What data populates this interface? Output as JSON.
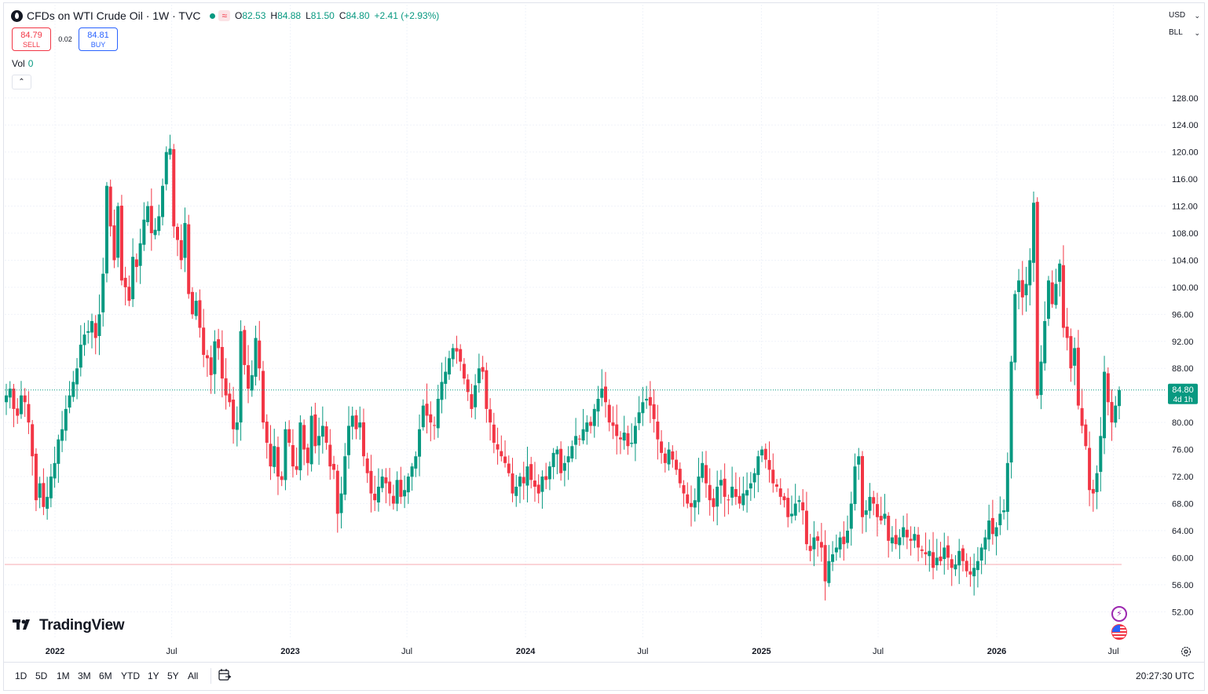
{
  "header": {
    "title": "CFDs on WTI Crude Oil · 1W · TVC",
    "approx_icon": "≈",
    "open_label": "O",
    "open": "82.53",
    "high_label": "H",
    "high": "84.88",
    "low_label": "L",
    "low": "81.50",
    "close_label": "C",
    "close": "84.80",
    "change": "+2.41 (+2.93%)"
  },
  "trade": {
    "sell_price": "84.79",
    "sell_label": "SELL",
    "spread": "0.02",
    "buy_price": "84.81",
    "buy_label": "BUY"
  },
  "volume": {
    "label": "Vol",
    "value": "0"
  },
  "collapse_icon": "⌃",
  "right_controls": {
    "currency": "USD",
    "unit": "BLL"
  },
  "price_label": {
    "price": "84.80",
    "countdown": "4d 1h"
  },
  "logo_text": "TradingView",
  "bottom_bar": {
    "ranges": [
      "1D",
      "5D",
      "1M",
      "3M",
      "6M",
      "YTD",
      "1Y",
      "5Y",
      "All"
    ],
    "clock": "20:27:30 UTC"
  },
  "icons": {
    "symbol": "symbol-logo-icon",
    "settings": "gear-icon",
    "calendar": "calendar-range-icon",
    "events": "lightning-icon",
    "flag": "us-flag-icon"
  },
  "colors": {
    "up": "#089981",
    "down": "#f23645",
    "grid": "#f0f3fa",
    "text": "#131722",
    "price_line": "#089981",
    "low_line": "#f7a9b0"
  },
  "chart_data": {
    "type": "candlestick",
    "title": "CFDs on WTI Crude Oil · 1W · TVC",
    "interval": "1W",
    "y_axis": {
      "position": "right",
      "ticks": [
        "52.00",
        "56.00",
        "60.00",
        "64.00",
        "68.00",
        "72.00",
        "76.00",
        "80.00",
        "84.00",
        "88.00",
        "92.00",
        "96.00",
        "100.00",
        "104.00",
        "108.00",
        "112.00",
        "116.00",
        "120.00",
        "124.00",
        "128.00"
      ],
      "ylim": [
        48.2,
        132.5
      ]
    },
    "x_axis": {
      "ticks": [
        {
          "label": "2022",
          "date": "2022-01-01",
          "bold": true
        },
        {
          "label": "Jul",
          "date": "2022-07-01",
          "bold": false
        },
        {
          "label": "2023",
          "date": "2023-01-01",
          "bold": true
        },
        {
          "label": "Jul",
          "date": "2023-07-01",
          "bold": false
        },
        {
          "label": "2024",
          "date": "2024-01-01",
          "bold": true
        },
        {
          "label": "Jul",
          "date": "2024-07-01",
          "bold": false
        },
        {
          "label": "2025",
          "date": "2025-01-01",
          "bold": true
        },
        {
          "label": "Jul",
          "date": "2025-07-01",
          "bold": false
        },
        {
          "label": "2026",
          "date": "2026-01-01",
          "bold": true
        },
        {
          "label": "Jul",
          "date": "2026-07-01",
          "bold": false
        }
      ],
      "xlim": [
        "2021-10-15",
        "2026-09-20"
      ]
    },
    "grid": true,
    "last_price": 84.8,
    "reference_level": 59.0,
    "series": [
      {
        "name": "",
        "weekly_closes": [
          [
            84.0,
            85.0,
            82.0,
            81.0,
            84.0,
            83.0,
            80.0,
            75.0,
            68.5,
            71.0,
            67.5,
            69.0,
            72.0,
            74.0,
            77.5,
            79.0,
            82.0,
            84.0,
            86.0,
            88.0,
            91.5,
            93.0,
            93.5,
            95.0,
            92.5,
            96.0,
            102.0,
            115.0,
            109.0,
            104.0,
            112.0,
            101.0,
            100.0,
            98.0,
            104.5,
            103.0,
            106.5,
            110.0,
            112.0,
            108.0,
            108.5,
            110.5,
            115.0,
            120.0,
            120.5,
            109.0,
            107.0,
            104.0,
            109.5,
            99.0,
            96.0,
            98.0,
            94.0,
            90.0,
            89.5,
            87.0,
            92.0,
            91.0,
            86.5,
            84.0,
            83.0,
            79.0,
            80.0,
            93.5,
            88.5,
            85.0,
            87.0,
            92.5,
            88.0,
            80.0,
            77.0,
            73.5,
            76.5,
            72.0,
            71.5,
            79.0,
            77.0,
            73.5,
            73.0,
            80.0,
            76.0,
            74.0,
            81.0,
            76.5,
            78.0,
            79.5,
            77.0,
            73.5,
            73.0,
            66.5,
            69.5,
            75.0,
            79.5,
            81.0,
            79.0,
            80.0,
            75.0,
            72.5,
            69.5,
            68.5,
            70.5,
            72.0,
            71.0,
            69.5,
            68.0,
            71.5,
            69.0,
            70.0,
            72.0,
            73.5,
            75.0,
            79.0,
            82.5,
            81.0,
            80.0,
            79.5,
            83.5,
            86.0,
            87.5,
            89.5,
            91.0,
            90.5,
            89.0,
            86.5,
            84.5,
            82.0,
            85.5,
            88.0,
            87.5,
            82.0,
            80.0,
            77.0,
            76.0,
            75.0,
            74.0,
            72.5,
            69.5,
            70.5,
            72.0,
            71.0,
            73.5,
            71.5,
            70.5,
            69.5,
            72.0,
            71.5,
            73.5,
            75.5,
            76.0,
            72.5,
            74.0,
            75.0,
            76.5,
            78.0,
            77.5,
            79.0,
            80.0,
            79.5,
            82.0,
            83.5,
            85.0,
            83.0,
            80.0,
            79.5,
            78.0,
            77.5,
            78.5,
            76.5,
            77.0,
            79.5,
            81.5,
            83.0,
            83.5,
            82.5,
            80.5,
            77.5,
            75.5,
            74.0,
            76.0,
            74.5,
            73.0,
            71.0,
            69.5,
            68.0,
            67.5,
            68.5,
            72.0,
            74.0,
            71.0,
            68.5,
            67.5,
            70.5,
            71.5,
            69.0,
            68.5,
            70.5,
            69.0,
            68.0,
            69.5,
            70.0,
            71.0,
            72.5,
            75.0,
            76.0,
            74.5,
            73.0,
            71.0,
            70.5,
            69.0,
            68.5,
            66.0,
            66.5,
            68.0,
            68.5,
            67.0,
            62.0,
            61.0,
            63.0,
            62.5,
            61.5,
            56.5,
            59.5,
            60.5,
            61.5,
            63.0,
            62.0,
            64.0,
            68.0,
            73.5,
            75.0,
            66.0,
            67.0,
            69.0,
            68.0,
            66.0,
            65.5,
            66.5,
            62.5,
            63.0,
            62.0,
            63.0,
            64.5,
            63.0,
            62.5,
            63.5,
            61.5,
            61.0,
            60.5,
            61.0,
            58.5,
            60.0,
            59.5,
            61.5,
            60.0,
            58.5,
            59.0,
            61.0,
            59.5,
            58.0,
            57.5,
            58.5,
            59.5,
            61.5,
            63.0,
            65.5,
            63.5,
            64.5,
            66.5,
            67.0,
            74.0,
            89.0,
            99.0,
            101.0,
            98.5,
            100.5,
            104.0,
            112.5,
            84.0,
            89.0,
            95.0,
            101.0,
            97.5,
            100.5,
            103.5,
            94.0,
            92.5,
            88.0,
            91.0,
            82.5,
            79.5,
            76.5,
            70.0,
            69.5,
            72.5,
            78.0,
            87.5,
            83.0,
            80.0,
            82.5,
            84.8
          ]
        ]
      }
    ]
  }
}
